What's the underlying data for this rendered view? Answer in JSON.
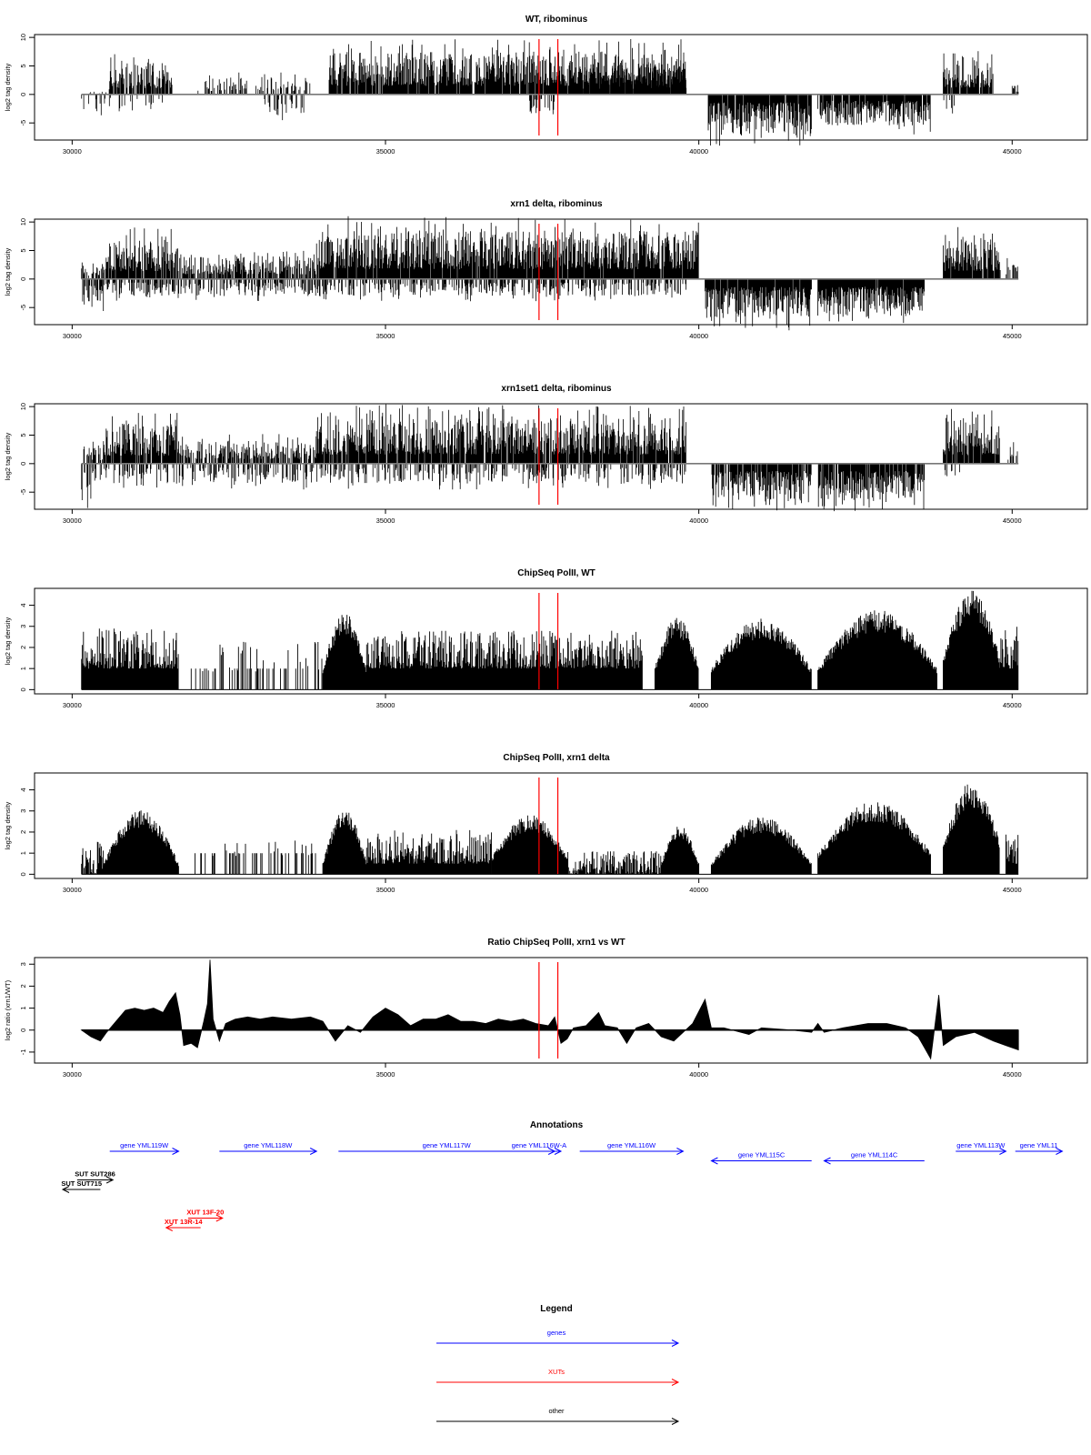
{
  "colors": {
    "axis": "#000000",
    "marker": "#ff0000",
    "genes": "#0000ff",
    "xuts": "#ff0000",
    "other": "#000000"
  },
  "genome_axis": {
    "range": [
      30000,
      45000
    ],
    "ticks": [
      30000,
      35000,
      40000,
      45000
    ],
    "labels": [
      "30000",
      "35000",
      "40000",
      "45000"
    ]
  },
  "marker_lines": [
    37450,
    37750
  ],
  "chart_data": [
    {
      "type": "bar",
      "title": "WT, ribominus",
      "ylabel": "log2 tag density",
      "ylim": [
        -8,
        10.5
      ],
      "yticks": [
        -5,
        0,
        5,
        10
      ],
      "ytick_labels": [
        "-5",
        "0",
        "5",
        "10"
      ],
      "x_range": [
        30150,
        45100
      ],
      "baseline": 0,
      "style": "density",
      "plus_segments": [
        {
          "x": [
            30200,
            30600
          ],
          "amp": 0.8,
          "density": 0.2
        },
        {
          "x": [
            30600,
            31600
          ],
          "amp": 5.5,
          "density": 0.75
        },
        {
          "x": [
            32000,
            33800
          ],
          "amp": 3,
          "density": 0.35
        },
        {
          "x": [
            34100,
            39800
          ],
          "amp": 7.5,
          "density": 0.9
        },
        {
          "x": [
            38100,
            39800
          ],
          "amp": 5,
          "density": 0.85
        },
        {
          "x": [
            43900,
            44700
          ],
          "amp": 6,
          "density": 0.85
        },
        {
          "x": [
            45000,
            45100
          ],
          "amp": 2,
          "density": 0.5
        }
      ],
      "minus_segments": [
        {
          "x": [
            30150,
            31600
          ],
          "amp": 3,
          "density": 0.2
        },
        {
          "x": [
            33000,
            33700
          ],
          "amp": 3.5,
          "density": 0.3
        },
        {
          "x": [
            37300,
            37700
          ],
          "amp": 3.5,
          "density": 0.3
        },
        {
          "x": [
            40150,
            41800
          ],
          "amp": 7,
          "density": 0.95
        },
        {
          "x": [
            41900,
            43700
          ],
          "amp": 5.5,
          "density": 0.9
        },
        {
          "x": [
            43900,
            44100
          ],
          "amp": 4,
          "density": 0.3
        }
      ]
    },
    {
      "type": "bar",
      "title": "xrn1 delta, ribominus",
      "ylabel": "log2 tag density",
      "ylim": [
        -8,
        10.5
      ],
      "yticks": [
        -5,
        0,
        5,
        10
      ],
      "ytick_labels": [
        "-5",
        "0",
        "5",
        "10"
      ],
      "x_range": [
        30150,
        45100
      ],
      "baseline": 0,
      "style": "density",
      "plus_segments": [
        {
          "x": [
            30150,
            30500
          ],
          "amp": 3,
          "density": 0.6
        },
        {
          "x": [
            30500,
            31700
          ],
          "amp": 7,
          "density": 0.9
        },
        {
          "x": [
            31700,
            33900
          ],
          "amp": 4,
          "density": 0.7
        },
        {
          "x": [
            33900,
            40000
          ],
          "amp": 8.5,
          "density": 0.95
        },
        {
          "x": [
            43900,
            44800
          ],
          "amp": 7,
          "density": 0.9
        },
        {
          "x": [
            44800,
            45100
          ],
          "amp": 4,
          "density": 0.5
        }
      ],
      "minus_segments": [
        {
          "x": [
            30150,
            30500
          ],
          "amp": 5.5,
          "density": 0.6
        },
        {
          "x": [
            30500,
            39800
          ],
          "amp": 3,
          "density": 0.45
        },
        {
          "x": [
            40100,
            41800
          ],
          "amp": 7,
          "density": 0.95
        },
        {
          "x": [
            41900,
            43600
          ],
          "amp": 6.5,
          "density": 0.95
        }
      ]
    },
    {
      "type": "bar",
      "title": "xrn1set1 delta, ribominus",
      "ylabel": "log2 tag density",
      "ylim": [
        -8,
        10.5
      ],
      "yticks": [
        -5,
        0,
        5,
        10
      ],
      "ytick_labels": [
        "-5",
        "0",
        "5",
        "10"
      ],
      "x_range": [
        30150,
        45100
      ],
      "baseline": 0,
      "style": "density",
      "plus_segments": [
        {
          "x": [
            30150,
            30500
          ],
          "amp": 3,
          "density": 0.5
        },
        {
          "x": [
            30500,
            31700
          ],
          "amp": 7,
          "density": 0.9
        },
        {
          "x": [
            31700,
            33900
          ],
          "amp": 4,
          "density": 0.6
        },
        {
          "x": [
            33900,
            39800
          ],
          "amp": 8,
          "density": 0.9
        },
        {
          "x": [
            43900,
            44800
          ],
          "amp": 7.5,
          "density": 0.9
        },
        {
          "x": [
            44900,
            45100
          ],
          "amp": 3,
          "density": 0.4
        }
      ],
      "minus_segments": [
        {
          "x": [
            30150,
            30300
          ],
          "amp": 6.5,
          "density": 0.5
        },
        {
          "x": [
            30300,
            39800
          ],
          "amp": 3.5,
          "density": 0.35
        },
        {
          "x": [
            40200,
            41800
          ],
          "amp": 6.5,
          "density": 0.85
        },
        {
          "x": [
            41900,
            43600
          ],
          "amp": 6.5,
          "density": 0.85
        },
        {
          "x": [
            43900,
            44200
          ],
          "amp": 3,
          "density": 0.3
        }
      ]
    },
    {
      "type": "bar",
      "title": "ChipSeq PolII, WT",
      "ylabel": "log2 tag density",
      "ylim": [
        -0.2,
        4.8
      ],
      "yticks": [
        0,
        1,
        2,
        3,
        4
      ],
      "ytick_labels": [
        "0",
        "1",
        "2",
        "3",
        "4"
      ],
      "x_range": [
        30150,
        45100
      ],
      "baseline": 0,
      "style": "chip",
      "segments": [
        {
          "x": [
            30150,
            31700
          ],
          "base": 1,
          "peak": 2.9,
          "shape": "flat"
        },
        {
          "x": [
            31900,
            32300
          ],
          "base": 0,
          "peak": 1,
          "shape": "sparse"
        },
        {
          "x": [
            32350,
            34000
          ],
          "base": 0,
          "peak": 2.3,
          "shape": "sparse"
        },
        {
          "x": [
            34000,
            34700
          ],
          "base": 1,
          "peak": 3.5,
          "shape": "hump"
        },
        {
          "x": [
            34700,
            39100
          ],
          "base": 1,
          "peak": 2.8,
          "shape": "flat"
        },
        {
          "x": [
            39300,
            40000
          ],
          "base": 1,
          "peak": 3.3,
          "shape": "hump"
        },
        {
          "x": [
            40200,
            41800
          ],
          "base": 1,
          "peak": 3.2,
          "shape": "hump"
        },
        {
          "x": [
            41900,
            43800
          ],
          "base": 1,
          "peak": 3.6,
          "shape": "hump"
        },
        {
          "x": [
            43900,
            44800
          ],
          "base": 1.5,
          "peak": 4.5,
          "shape": "hump"
        },
        {
          "x": [
            44800,
            45100
          ],
          "base": 1,
          "peak": 3,
          "shape": "flat"
        }
      ]
    },
    {
      "type": "bar",
      "title": "ChipSeq PolII, xrn1 delta",
      "ylabel": "log2 tag density",
      "ylim": [
        -0.2,
        4.8
      ],
      "yticks": [
        0,
        1,
        2,
        3,
        4
      ],
      "ytick_labels": [
        "0",
        "1",
        "2",
        "3",
        "4"
      ],
      "x_range": [
        30150,
        45100
      ],
      "baseline": 0,
      "style": "chip",
      "segments": [
        {
          "x": [
            30150,
            30500
          ],
          "base": 0,
          "peak": 1.6,
          "shape": "flat"
        },
        {
          "x": [
            30500,
            31700
          ],
          "base": 0.5,
          "peak": 2.9,
          "shape": "hump"
        },
        {
          "x": [
            31900,
            32300
          ],
          "base": 0,
          "peak": 1,
          "shape": "sparse"
        },
        {
          "x": [
            32400,
            33900
          ],
          "base": 0,
          "peak": 1.6,
          "shape": "sparse"
        },
        {
          "x": [
            34000,
            34700
          ],
          "base": 0.5,
          "peak": 2.9,
          "shape": "hump"
        },
        {
          "x": [
            34700,
            36700
          ],
          "base": 0.5,
          "peak": 2.1,
          "shape": "flat"
        },
        {
          "x": [
            36700,
            37900
          ],
          "base": 0.8,
          "peak": 2.7,
          "shape": "hump"
        },
        {
          "x": [
            37900,
            39400
          ],
          "base": 0,
          "peak": 1.1,
          "shape": "flat"
        },
        {
          "x": [
            39400,
            40000
          ],
          "base": 0.5,
          "peak": 2.2,
          "shape": "hump"
        },
        {
          "x": [
            40200,
            41800
          ],
          "base": 0.5,
          "peak": 2.6,
          "shape": "hump"
        },
        {
          "x": [
            41900,
            43700
          ],
          "base": 1,
          "peak": 3.3,
          "shape": "hump"
        },
        {
          "x": [
            43900,
            44800
          ],
          "base": 1.5,
          "peak": 4.2,
          "shape": "hump"
        },
        {
          "x": [
            44900,
            45100
          ],
          "base": 0.5,
          "peak": 2,
          "shape": "flat"
        }
      ]
    },
    {
      "type": "area",
      "title": "Ratio ChipSeq PolII, xrn1 vs WT",
      "ylabel": "log2 ratio (xrn1/WT)",
      "ylim": [
        -1.5,
        3.3
      ],
      "yticks": [
        -1,
        0,
        1,
        2,
        3
      ],
      "ytick_labels": [
        "-1",
        "0",
        "1",
        "2",
        "3"
      ],
      "x_range": [
        30150,
        45100
      ],
      "baseline": 0,
      "style": "profile",
      "profile": [
        [
          30150,
          0.0
        ],
        [
          30300,
          -0.3
        ],
        [
          30450,
          -0.5
        ],
        [
          30550,
          -0.1
        ],
        [
          30700,
          0.4
        ],
        [
          30850,
          0.9
        ],
        [
          31000,
          1.0
        ],
        [
          31150,
          0.9
        ],
        [
          31300,
          1.0
        ],
        [
          31450,
          0.8
        ],
        [
          31550,
          1.3
        ],
        [
          31650,
          1.7
        ],
        [
          31720,
          0.7
        ],
        [
          31780,
          -0.7
        ],
        [
          31900,
          -0.6
        ],
        [
          32000,
          -0.8
        ],
        [
          32100,
          0.4
        ],
        [
          32160,
          1.2
        ],
        [
          32200,
          3.2
        ],
        [
          32250,
          0.5
        ],
        [
          32350,
          -0.5
        ],
        [
          32450,
          0.3
        ],
        [
          32600,
          0.5
        ],
        [
          32800,
          0.6
        ],
        [
          33000,
          0.5
        ],
        [
          33200,
          0.6
        ],
        [
          33500,
          0.5
        ],
        [
          33800,
          0.6
        ],
        [
          34000,
          0.4
        ],
        [
          34200,
          -0.5
        ],
        [
          34400,
          0.2
        ],
        [
          34600,
          -0.1
        ],
        [
          34800,
          0.6
        ],
        [
          35000,
          1.0
        ],
        [
          35200,
          0.7
        ],
        [
          35400,
          0.2
        ],
        [
          35600,
          0.5
        ],
        [
          35800,
          0.5
        ],
        [
          36000,
          0.7
        ],
        [
          36200,
          0.4
        ],
        [
          36400,
          0.4
        ],
        [
          36600,
          0.3
        ],
        [
          36800,
          0.5
        ],
        [
          37000,
          0.4
        ],
        [
          37200,
          0.5
        ],
        [
          37400,
          0.3
        ],
        [
          37600,
          0.2
        ],
        [
          37700,
          0.6
        ],
        [
          37800,
          -0.6
        ],
        [
          37900,
          -0.4
        ],
        [
          38000,
          0.1
        ],
        [
          38200,
          0.2
        ],
        [
          38400,
          0.8
        ],
        [
          38500,
          0.2
        ],
        [
          38700,
          0.1
        ],
        [
          38850,
          -0.6
        ],
        [
          39000,
          0.1
        ],
        [
          39200,
          0.3
        ],
        [
          39400,
          -0.3
        ],
        [
          39600,
          -0.5
        ],
        [
          39900,
          0.3
        ],
        [
          40100,
          1.4
        ],
        [
          40200,
          0.1
        ],
        [
          40400,
          0.1
        ],
        [
          40800,
          -0.2
        ],
        [
          41000,
          0.1
        ],
        [
          41500,
          0.0
        ],
        [
          41800,
          -0.1
        ],
        [
          41900,
          0.3
        ],
        [
          42000,
          -0.1
        ],
        [
          42300,
          0.1
        ],
        [
          42700,
          0.3
        ],
        [
          43000,
          0.3
        ],
        [
          43300,
          0.1
        ],
        [
          43500,
          -0.3
        ],
        [
          43700,
          -1.3
        ],
        [
          43830,
          1.6
        ],
        [
          43900,
          -0.7
        ],
        [
          44100,
          -0.3
        ],
        [
          44400,
          -0.1
        ],
        [
          44700,
          -0.5
        ],
        [
          44900,
          -0.7
        ],
        [
          45100,
          -0.9
        ]
      ]
    }
  ],
  "annotations": {
    "title": "Annotations",
    "features": [
      {
        "label": "gene YML119W",
        "start": 30600,
        "end": 31700,
        "strand": "+",
        "row": 0,
        "kind": "genes"
      },
      {
        "label": "gene YML118W",
        "start": 32350,
        "end": 33900,
        "strand": "+",
        "row": 0,
        "kind": "genes"
      },
      {
        "label": "gene YML117W",
        "start": 34250,
        "end": 37700,
        "strand": "+",
        "row": 0,
        "kind": "genes"
      },
      {
        "label": "gene YML116W-A",
        "start": 37100,
        "end": 37800,
        "strand": "+",
        "row": 0,
        "kind": "genes"
      },
      {
        "label": "gene YML116W",
        "start": 38100,
        "end": 39750,
        "strand": "+",
        "row": 0,
        "kind": "genes"
      },
      {
        "label": "gene YML115C",
        "start": 40200,
        "end": 41800,
        "strand": "-",
        "row": 1,
        "kind": "genes"
      },
      {
        "label": "gene YML114C",
        "start": 42000,
        "end": 43600,
        "strand": "-",
        "row": 1,
        "kind": "genes"
      },
      {
        "label": "gene YML113W",
        "start": 44100,
        "end": 44900,
        "strand": "+",
        "row": 0,
        "kind": "genes"
      },
      {
        "label": "gene YML11",
        "start": 45050,
        "end": 45800,
        "strand": "+",
        "row": 0,
        "kind": "genes"
      },
      {
        "label": "SUT SUT286",
        "start": 30080,
        "end": 30650,
        "strand": "+",
        "row": 3,
        "kind": "other"
      },
      {
        "label": "SUT SUT715",
        "start": 29850,
        "end": 30450,
        "strand": "-",
        "row": 4,
        "kind": "other"
      },
      {
        "label": "XUT 13F-20",
        "start": 31850,
        "end": 32400,
        "strand": "+",
        "row": 7,
        "kind": "xuts"
      },
      {
        "label": "XUT 13R-14",
        "start": 31500,
        "end": 32050,
        "strand": "-",
        "row": 8,
        "kind": "xuts"
      }
    ]
  },
  "legend": {
    "title": "Legend",
    "items": [
      {
        "label": "genes",
        "color": "#0000ff"
      },
      {
        "label": "XUTs",
        "color": "#ff0000"
      },
      {
        "label": "other",
        "color": "#000000"
      }
    ]
  }
}
